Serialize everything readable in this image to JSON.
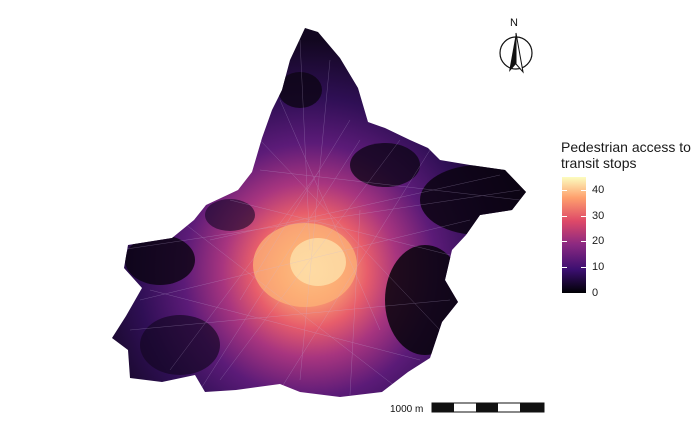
{
  "map": {
    "legend": {
      "title": "Pedestrian access to transit stops",
      "ticks": [
        {
          "label": "40",
          "value": 40
        },
        {
          "label": "30",
          "value": 30
        },
        {
          "label": "20",
          "value": 20
        },
        {
          "label": "10",
          "value": 10
        },
        {
          "label": "0",
          "value": 0
        }
      ],
      "min": 0,
      "max": 45,
      "palette": [
        "#000004",
        "#3b0f70",
        "#8c2981",
        "#de4968",
        "#fe9f6d",
        "#fcfdbf"
      ]
    },
    "north_arrow": {
      "label": "N"
    },
    "scale_bar": {
      "label": "1000 m"
    }
  }
}
